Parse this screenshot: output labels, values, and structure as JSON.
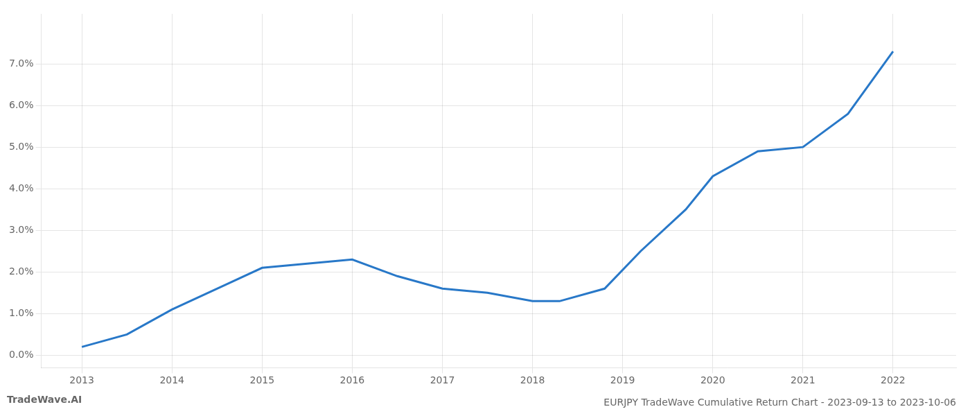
{
  "chart_data": {
    "type": "line",
    "title": "EURJPY TradeWave Cumulative Return Chart - 2023-09-13 to 2023-10-06",
    "x": [
      2013.0,
      2013.5,
      2014.0,
      2014.6,
      2015.0,
      2015.5,
      2016.0,
      2016.5,
      2017.0,
      2017.5,
      2018.0,
      2018.3,
      2018.8,
      2019.2,
      2019.7,
      2020.0,
      2020.5,
      2021.0,
      2021.5,
      2022.0
    ],
    "values": [
      0.002,
      0.005,
      0.011,
      0.017,
      0.021,
      0.022,
      0.023,
      0.019,
      0.016,
      0.015,
      0.013,
      0.013,
      0.016,
      0.025,
      0.035,
      0.043,
      0.049,
      0.05,
      0.058,
      0.073
    ],
    "color": "#2878c8",
    "xlim": [
      2012.55,
      2022.7
    ],
    "ylim": [
      -0.003,
      0.082
    ],
    "xticks": [
      2013,
      2014,
      2015,
      2016,
      2017,
      2018,
      2019,
      2020,
      2021,
      2022
    ],
    "yticks": [
      {
        "value": 0.0,
        "label": "0.0%"
      },
      {
        "value": 0.01,
        "label": "1.0%"
      },
      {
        "value": 0.02,
        "label": "2.0%"
      },
      {
        "value": 0.03,
        "label": "3.0%"
      },
      {
        "value": 0.04,
        "label": "4.0%"
      },
      {
        "value": 0.05,
        "label": "5.0%"
      },
      {
        "value": 0.06,
        "label": "6.0%"
      },
      {
        "value": 0.07,
        "label": "7.0%"
      }
    ],
    "grid": true,
    "annotations": [
      {
        "text": "TradeWave.AI"
      }
    ]
  }
}
